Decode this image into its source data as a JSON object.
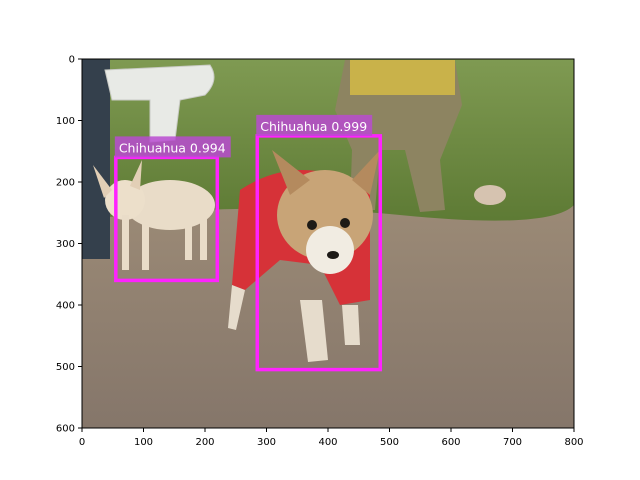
{
  "image": {
    "width": 800,
    "height": 600,
    "scene": "two-chihuahuas-outdoors"
  },
  "axes": {
    "x_range": [
      0,
      800
    ],
    "y_range": [
      600,
      0
    ],
    "x_ticks": [
      0,
      100,
      200,
      300,
      400,
      500,
      600,
      700,
      800
    ],
    "y_ticks": [
      0,
      100,
      200,
      300,
      400,
      500,
      600
    ],
    "x_tick_labels": [
      "0",
      "100",
      "200",
      "300",
      "400",
      "500",
      "600",
      "700",
      "800"
    ],
    "y_tick_labels": [
      "0",
      "100",
      "200",
      "300",
      "400",
      "500",
      "600"
    ]
  },
  "detections": [
    {
      "label": "Chihuahua 0.994",
      "class": "Chihuahua",
      "score": 0.994,
      "box": {
        "x1": 55,
        "y1": 160,
        "x2": 220,
        "y2": 360
      }
    },
    {
      "label": "Chihuahua 0.999",
      "class": "Chihuahua",
      "score": 0.999,
      "box": {
        "x1": 285,
        "y1": 125,
        "x2": 485,
        "y2": 505
      }
    }
  ],
  "colors": {
    "box": "#ff22ff",
    "label_bg": "#b94bd0",
    "label_text": "#ffffff",
    "sky": "#ffffff",
    "grass": "#6d8a3e",
    "ground": "#8f7f6c"
  }
}
